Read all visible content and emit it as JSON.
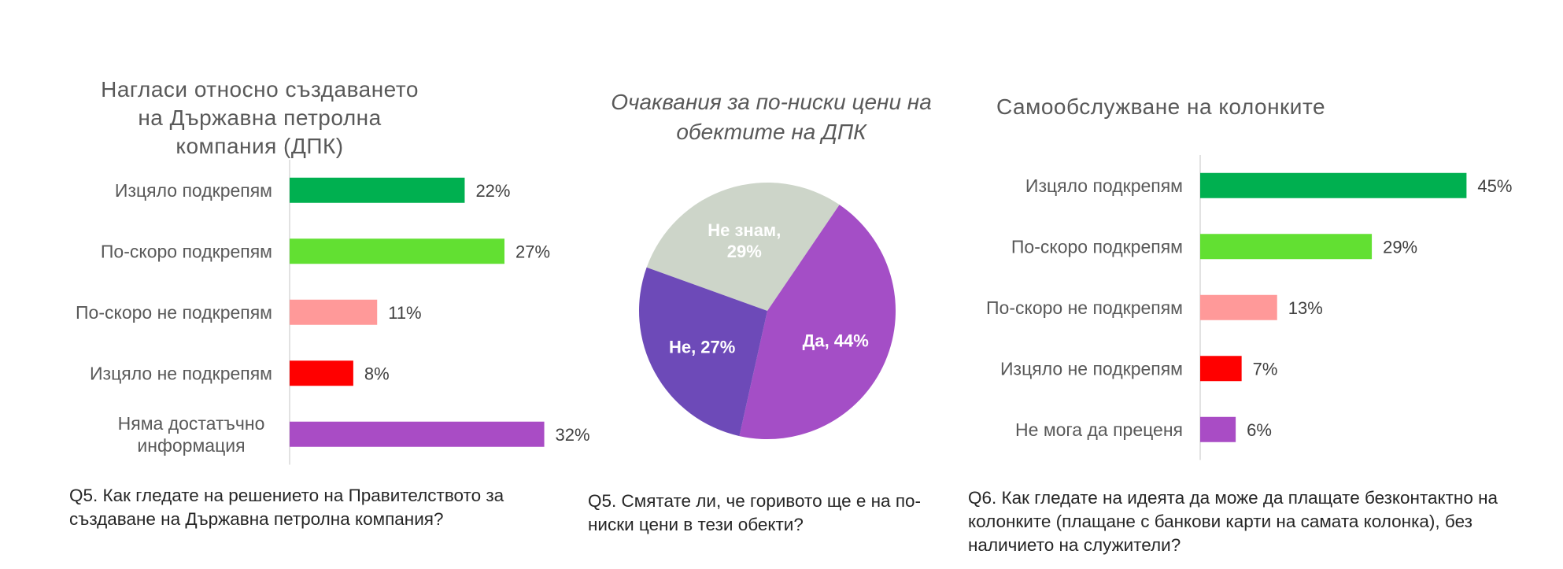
{
  "chart_data": [
    {
      "type": "bar",
      "orientation": "horizontal",
      "title": "Нагласи относно създаването на Държавна петролна компания (ДПК)",
      "categories": [
        "Изцяло подкрепям",
        "По-скоро подкрепям",
        "По-скоро не подкрепям",
        "Изцяло не подкрепям",
        "Няма достатъчно информация"
      ],
      "values": [
        22,
        27,
        11,
        8,
        32
      ],
      "value_labels": [
        "22%",
        "27%",
        "11%",
        "8%",
        "32%"
      ],
      "colors": [
        "#00b050",
        "#62e032",
        "#ff9999",
        "#ff0000",
        "#a94cc5"
      ],
      "xlim": [
        0,
        36
      ],
      "question": "Q5. Как гледате на решението на Правителството за създаване на Държавна петролна компания?"
    },
    {
      "type": "pie",
      "title": "Очаквания за по-ниски цени на обектите на ДПК",
      "slices": [
        {
          "label": "Не знам, 29%",
          "value": 29,
          "color": "#cdd5c9"
        },
        {
          "label": "Да, 44%",
          "value": 44,
          "color": "#a44ec6"
        },
        {
          "label": "Не, 27%",
          "value": 27,
          "color": "#6d4ab8"
        }
      ],
      "question": "Q5. Смятате ли, че горивото ще е на по-ниски цени в тези обекти?"
    },
    {
      "type": "bar",
      "orientation": "horizontal",
      "title": "Самообслужване на колонките",
      "categories": [
        "Изцяло подкрепям",
        "По-скоро подкрепям",
        "По-скоро не подкрепям",
        "Изцяло не подкрепям",
        "Не мога да преценя"
      ],
      "values": [
        45,
        29,
        13,
        7,
        6
      ],
      "value_labels": [
        "45%",
        "29%",
        "13%",
        "7%",
        "6%"
      ],
      "colors": [
        "#00b050",
        "#62e032",
        "#ff9999",
        "#ff0000",
        "#a94cc5"
      ],
      "xlim": [
        0,
        50
      ],
      "question": "Q6. Как гледате на идеята да може да плащате безконтактно на колонките (плащане с банкови карти на самата колонка), без наличието на служители?"
    }
  ]
}
